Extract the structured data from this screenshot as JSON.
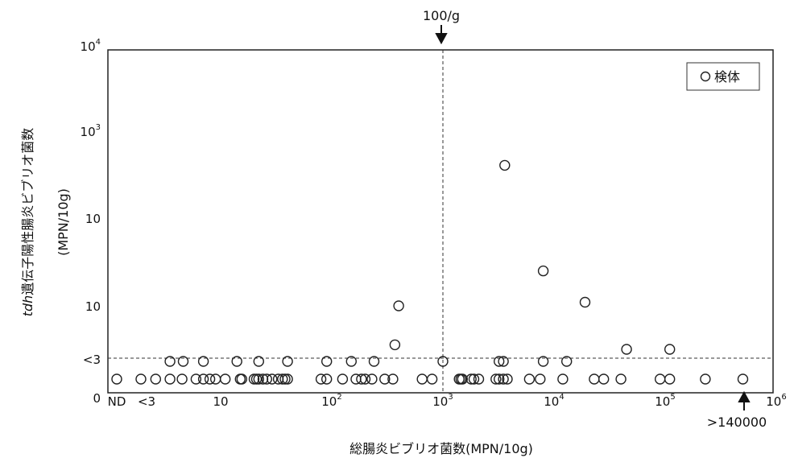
{
  "chart_data": {
    "type": "scatter",
    "xlabel": "総腸炎ビブリオ菌数(MPN/10g)",
    "ylabel": {
      "prefix": "tdh",
      "main": "遺伝子陽性腸炎ビブリオ菌数",
      "unit": "(MPN/10g)"
    },
    "legend": {
      "label": "検体",
      "position": "top-right"
    },
    "x_scale": "log",
    "y_scale": "log",
    "x_ticks": [
      {
        "label": "ND"
      },
      {
        "label": "<3"
      },
      {
        "label": "10"
      },
      {
        "base": "10",
        "exp": "2"
      },
      {
        "base": "10",
        "exp": "3"
      },
      {
        "base": "10",
        "exp": "4"
      },
      {
        "base": "10",
        "exp": "5"
      },
      {
        "base": "10",
        "exp": "6"
      }
    ],
    "y_ticks": [
      {
        "label": "0"
      },
      {
        "label": "<3"
      },
      {
        "label": "10"
      },
      {
        "label": "10"
      },
      {
        "base": "10",
        "exp": "3"
      },
      {
        "base": "10",
        "exp": "4"
      }
    ],
    "annotations": {
      "threshold_label": "100/g",
      "max_label": ">140000"
    },
    "points": [
      [
        0,
        0
      ],
      [
        1,
        0
      ],
      [
        2.6,
        0
      ],
      [
        3.5,
        0
      ],
      [
        4.5,
        0
      ],
      [
        6,
        0
      ],
      [
        7,
        0
      ],
      [
        8,
        0
      ],
      [
        9,
        0
      ],
      [
        11,
        0
      ],
      [
        15,
        0
      ],
      [
        15.5,
        0
      ],
      [
        20,
        0
      ],
      [
        21,
        0
      ],
      [
        22,
        0
      ],
      [
        24,
        0
      ],
      [
        26,
        0
      ],
      [
        29,
        0
      ],
      [
        33,
        0
      ],
      [
        36,
        0
      ],
      [
        38,
        0
      ],
      [
        40,
        0
      ],
      [
        80,
        0
      ],
      [
        90,
        0
      ],
      [
        125,
        0
      ],
      [
        165,
        0
      ],
      [
        185,
        0
      ],
      [
        200,
        0
      ],
      [
        230,
        0
      ],
      [
        300,
        0
      ],
      [
        355,
        0
      ],
      [
        650,
        0
      ],
      [
        800,
        0
      ],
      [
        1400,
        0
      ],
      [
        1450,
        0
      ],
      [
        1500,
        0
      ],
      [
        1800,
        0
      ],
      [
        1900,
        0
      ],
      [
        2100,
        0
      ],
      [
        3000,
        0
      ],
      [
        3200,
        0
      ],
      [
        3500,
        0
      ],
      [
        3800,
        0
      ],
      [
        6000,
        0
      ],
      [
        7500,
        0
      ],
      [
        12000,
        0
      ],
      [
        23000,
        0
      ],
      [
        28000,
        0
      ],
      [
        40000,
        0
      ],
      [
        90000,
        0
      ],
      [
        110000,
        0
      ],
      [
        230000,
        0
      ],
      [
        500000,
        0
      ],
      [
        3.5,
        3
      ],
      [
        14,
        3
      ],
      [
        22,
        3
      ],
      [
        40,
        3
      ],
      [
        90,
        3
      ],
      [
        150,
        3
      ],
      [
        240,
        3
      ],
      [
        1000,
        3
      ],
      [
        3200,
        3
      ],
      [
        3500,
        3
      ],
      [
        8000,
        3
      ],
      [
        13000,
        3
      ],
      [
        4.6,
        3
      ],
      [
        7,
        3
      ],
      [
        370,
        4.3
      ],
      [
        400,
        10
      ],
      [
        3600,
        400
      ],
      [
        8000,
        25
      ],
      [
        19000,
        11
      ],
      [
        45000,
        3.9
      ],
      [
        110000,
        3.9
      ]
    ]
  }
}
